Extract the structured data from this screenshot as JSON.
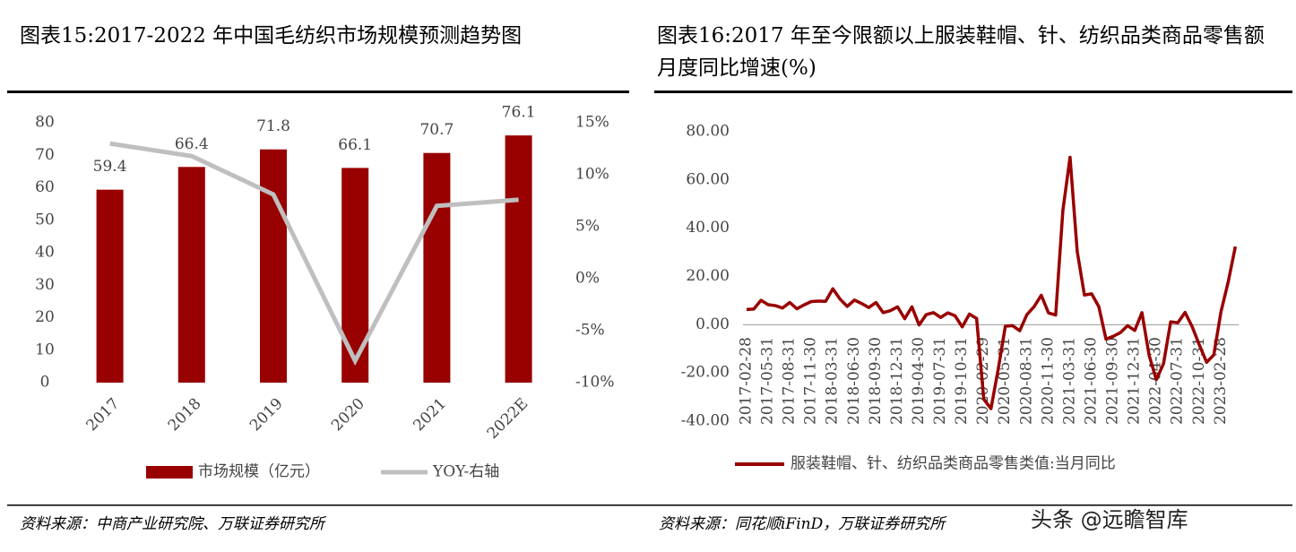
{
  "chart_data": [
    {
      "type": "bar",
      "title": "图表15:2017-2022 年中国毛纺织市场规模预测趋势图",
      "categories": [
        "2017",
        "2018",
        "2019",
        "2020",
        "2021",
        "2022E"
      ],
      "series": [
        {
          "name": "市场规模（亿元）",
          "type": "bar",
          "color": "#990000",
          "values": [
            59.4,
            66.4,
            71.8,
            66.1,
            70.7,
            76.1
          ]
        },
        {
          "name": "YOY-右轴",
          "type": "line",
          "axis": "y2",
          "color": "#bfbfbf",
          "values": [
            13.0,
            11.8,
            8.1,
            -7.9,
            7.0,
            7.6
          ]
        }
      ],
      "ylim": [
        0,
        80
      ],
      "yticks": [
        0,
        10,
        20,
        30,
        40,
        50,
        60,
        70,
        80
      ],
      "y2lim": [
        -10,
        15
      ],
      "y2ticks": [
        {
          "value": -10,
          "label": "-10%"
        },
        {
          "value": -5,
          "label": "-5%"
        },
        {
          "value": 0,
          "label": "0%"
        },
        {
          "value": 5,
          "label": "5%"
        },
        {
          "value": 10,
          "label": "10%"
        },
        {
          "value": 15,
          "label": "15%"
        }
      ],
      "legend": "bottom",
      "grid": false
    },
    {
      "type": "line",
      "title": "图表16:2017 年至今限额以上服装鞋帽、针、纺织品类商品零售额月度同比增速(%)",
      "categories": [
        "2017-02-28",
        null,
        null,
        "2017-05-31",
        null,
        null,
        "2017-08-31",
        null,
        null,
        "2017-11-30",
        null,
        null,
        "2018-03-31",
        null,
        null,
        "2018-06-30",
        null,
        null,
        "2018-09-30",
        null,
        null,
        "2018-12-31",
        null,
        null,
        "2019-04-30",
        null,
        null,
        "2019-07-31",
        null,
        null,
        "2019-10-31",
        null,
        null,
        "2020-02-29",
        null,
        null,
        "2020-05-31",
        null,
        null,
        "2020-08-31",
        null,
        null,
        "2020-11-30",
        null,
        null,
        "2021-03-31",
        null,
        null,
        "2021-06-30",
        null,
        null,
        "2021-09-30",
        null,
        null,
        "2021-12-31",
        null,
        null,
        "2022-04-30",
        null,
        null,
        "2022-07-31",
        null,
        null,
        "2022-10-31",
        null,
        null,
        "2023-02-28",
        null,
        null
      ],
      "series": [
        {
          "name": "服装鞋帽、针、纺织品类商品零售类值:当月同比",
          "color": "#990000",
          "values": [
            6.3,
            6.5,
            10.1,
            8.3,
            7.9,
            6.9,
            9.2,
            6.6,
            8.2,
            9.6,
            9.8,
            9.7,
            14.9,
            10.6,
            7.6,
            10.2,
            8.8,
            7.1,
            9.2,
            5.0,
            5.8,
            7.4,
            2.5,
            7.4,
            -0.1,
            4.2,
            5.0,
            3.0,
            4.9,
            3.7,
            -0.9,
            4.4,
            2.6,
            -30.9,
            -34.8,
            -18.5,
            -0.6,
            -0.4,
            -2.5,
            4.2,
            7.5,
            12.2,
            4.9,
            4.0,
            47.3,
            69.4,
            30.3,
            12.3,
            12.8,
            7.5,
            -6.0,
            -4.8,
            -3.3,
            -0.4,
            -2.4,
            5.0,
            -12.7,
            -22.8,
            -16.2,
            1.2,
            0.8,
            5.1,
            -0.9,
            -8.5,
            -15.6,
            -12.5,
            5.4,
            17.7,
            32.4
          ]
        }
      ],
      "ylim": [
        -40,
        80
      ],
      "yticks": [
        {
          "value": -40,
          "label": "-40.00"
        },
        {
          "value": -20,
          "label": "-20.00"
        },
        {
          "value": 0,
          "label": "0.00"
        },
        {
          "value": 20,
          "label": "20.00"
        },
        {
          "value": 40,
          "label": "40.00"
        },
        {
          "value": 60,
          "label": "60.00"
        },
        {
          "value": 80,
          "label": "80.00"
        }
      ],
      "legend": "bottom",
      "grid": false
    }
  ],
  "sources": [
    "资料来源：中商产业研究院、万联证券研究所",
    "资料来源：同花顺iFinD，万联证券研究所"
  ],
  "watermark": "头条 @远瞻智库"
}
